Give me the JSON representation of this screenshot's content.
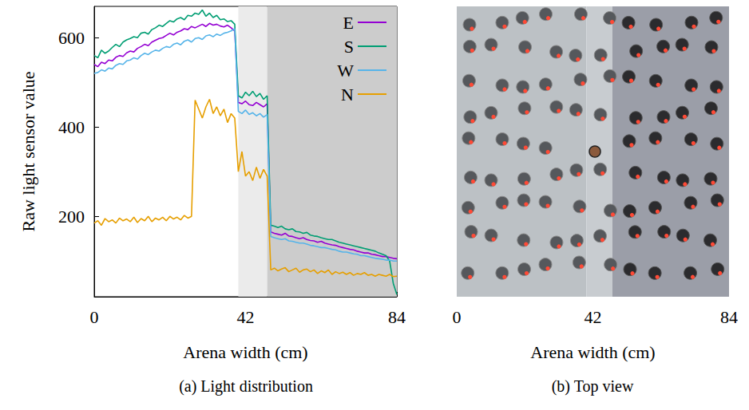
{
  "chart_data": [
    {
      "type": "line",
      "caption": "(a) Light distribution",
      "x_label": "Arena width (cm)",
      "y_label": "Raw light sensor value",
      "xlim": [
        0,
        84
      ],
      "xticks": [
        0,
        42,
        84
      ],
      "ylim": [
        20,
        670
      ],
      "yticks": [
        200,
        400,
        600
      ],
      "grid": false,
      "legend": "top-right",
      "shaded_regions": [
        {
          "range": [
            40,
            48
          ],
          "color": "#ebebeb"
        },
        {
          "range": [
            48,
            84
          ],
          "color": "#cccccc"
        }
      ],
      "x": [
        0,
        1,
        2,
        3,
        4,
        5,
        6,
        7,
        8,
        9,
        10,
        11,
        12,
        13,
        14,
        15,
        16,
        17,
        18,
        19,
        20,
        21,
        22,
        23,
        24,
        25,
        26,
        27,
        28,
        29,
        30,
        31,
        32,
        33,
        34,
        35,
        36,
        37,
        38,
        39,
        40,
        41,
        42,
        43,
        44,
        45,
        46,
        47,
        48,
        49,
        50,
        51,
        52,
        53,
        54,
        55,
        56,
        57,
        58,
        59,
        60,
        61,
        62,
        63,
        64,
        65,
        66,
        67,
        68,
        69,
        70,
        71,
        72,
        73,
        74,
        75,
        76,
        77,
        78,
        79,
        80,
        81,
        82,
        83,
        84
      ],
      "series": [
        {
          "name": "E",
          "color": "#9400d3",
          "values": [
            540,
            535,
            545,
            542,
            550,
            548,
            556,
            560,
            558,
            566,
            570,
            568,
            576,
            580,
            585,
            582,
            590,
            594,
            598,
            600,
            605,
            610,
            606,
            612,
            615,
            620,
            618,
            625,
            622,
            626,
            630,
            625,
            632,
            628,
            630,
            626,
            624,
            628,
            622,
            615,
            455,
            452,
            458,
            450,
            448,
            455,
            450,
            445,
            452,
            165,
            162,
            160,
            158,
            162,
            156,
            155,
            152,
            150,
            152,
            148,
            146,
            145,
            142,
            144,
            140,
            138,
            136,
            135,
            132,
            130,
            128,
            126,
            125,
            122,
            120,
            118,
            118,
            115,
            114,
            112,
            110,
            110,
            108,
            106,
            105
          ]
        },
        {
          "name": "S",
          "color": "#009e73",
          "values": [
            560,
            555,
            572,
            565,
            570,
            578,
            585,
            580,
            590,
            595,
            598,
            602,
            600,
            610,
            612,
            608,
            618,
            622,
            628,
            625,
            632,
            638,
            635,
            642,
            645,
            640,
            650,
            648,
            655,
            652,
            662,
            648,
            655,
            645,
            650,
            640,
            642,
            636,
            638,
            630,
            470,
            465,
            478,
            470,
            480,
            468,
            475,
            462,
            470,
            180,
            178,
            175,
            178,
            172,
            170,
            172,
            166,
            165,
            162,
            164,
            158,
            156,
            155,
            152,
            150,
            148,
            148,
            145,
            142,
            140,
            138,
            136,
            134,
            132,
            130,
            128,
            126,
            124,
            122,
            118,
            115,
            112,
            100,
            50,
            25
          ]
        },
        {
          "name": "W",
          "color": "#56b4e9",
          "values": [
            520,
            522,
            528,
            525,
            532,
            530,
            538,
            542,
            540,
            548,
            550,
            555,
            552,
            560,
            565,
            562,
            568,
            572,
            570,
            576,
            580,
            578,
            585,
            588,
            584,
            592,
            595,
            590,
            598,
            600,
            596,
            604,
            606,
            602,
            608,
            605,
            610,
            612,
            615,
            620,
            435,
            430,
            438,
            428,
            432,
            425,
            430,
            422,
            428,
            155,
            152,
            150,
            148,
            150,
            145,
            144,
            142,
            140,
            140,
            138,
            135,
            134,
            132,
            130,
            130,
            128,
            126,
            125,
            122,
            120,
            120,
            118,
            116,
            115,
            112,
            112,
            110,
            108,
            106,
            105,
            104,
            102,
            102,
            100,
            100
          ]
        },
        {
          "name": "N",
          "color": "#e69f00",
          "values": [
            185,
            190,
            180,
            195,
            188,
            192,
            185,
            196,
            190,
            194,
            188,
            198,
            186,
            195,
            190,
            200,
            188,
            196,
            192,
            198,
            190,
            200,
            194,
            198,
            192,
            202,
            196,
            200,
            460,
            440,
            420,
            445,
            462,
            430,
            445,
            425,
            440,
            410,
            430,
            420,
            300,
            345,
            290,
            300,
            280,
            310,
            285,
            305,
            290,
            80,
            84,
            78,
            82,
            85,
            76,
            80,
            84,
            75,
            80,
            82,
            76,
            80,
            72,
            78,
            74,
            80,
            70,
            76,
            72,
            75,
            70,
            74,
            68,
            72,
            70,
            74,
            68,
            70,
            66,
            70,
            68,
            66,
            70,
            65,
            66
          ]
        }
      ]
    },
    {
      "type": "image",
      "caption": "(b) Top view",
      "x_label": "Arena width (cm)",
      "xlim": [
        0,
        84
      ],
      "xticks": [
        0,
        42,
        84
      ],
      "tick_labels": "x",
      "regions": [
        {
          "range": [
            0,
            40
          ],
          "color": "#bcc1c5"
        },
        {
          "range": [
            40,
            48
          ],
          "color": "#c8ccd0"
        },
        {
          "range": [
            48,
            84
          ],
          "color": "#9b9ea8"
        }
      ]
    }
  ]
}
